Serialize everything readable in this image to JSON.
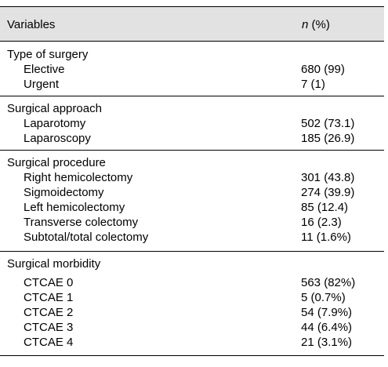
{
  "header": {
    "variables_label": "Variables",
    "n_label": "n",
    "pct_label": " (%)"
  },
  "sections": [
    {
      "title": "Type of surgery",
      "rows": [
        {
          "label": "Elective",
          "value": "680 (99)"
        },
        {
          "label": "Urgent",
          "value": "7 (1)"
        }
      ]
    },
    {
      "title": "Surgical approach",
      "rows": [
        {
          "label": "Laparotomy",
          "value": "502 (73.1)"
        },
        {
          "label": "Laparoscopy",
          "value": "185 (26.9)"
        }
      ]
    },
    {
      "title": "Surgical procedure",
      "rows": [
        {
          "label": "Right hemicolectomy",
          "value": "301 (43.8)"
        },
        {
          "label": "Sigmoidectomy",
          "value": "274 (39.9)"
        },
        {
          "label": "Left hemicolectomy",
          "value": "85 (12.4)"
        },
        {
          "label": "Transverse colectomy",
          "value": "16 (2.3)"
        },
        {
          "label": "Subtotal/total colectomy",
          "value": "11 (1.6%)"
        }
      ]
    },
    {
      "title": "Surgical morbidity",
      "rows": [
        {
          "label": "CTCAE 0",
          "value": "563 (82%)"
        },
        {
          "label": "CTCAE 1",
          "value": "5 (0.7%)"
        },
        {
          "label": "CTCAE 2",
          "value": "54 (7.9%)"
        },
        {
          "label": "CTCAE 3",
          "value": "44 (6.4%)"
        },
        {
          "label": "CTCAE 4",
          "value": "21 (3.1%)"
        }
      ]
    }
  ]
}
